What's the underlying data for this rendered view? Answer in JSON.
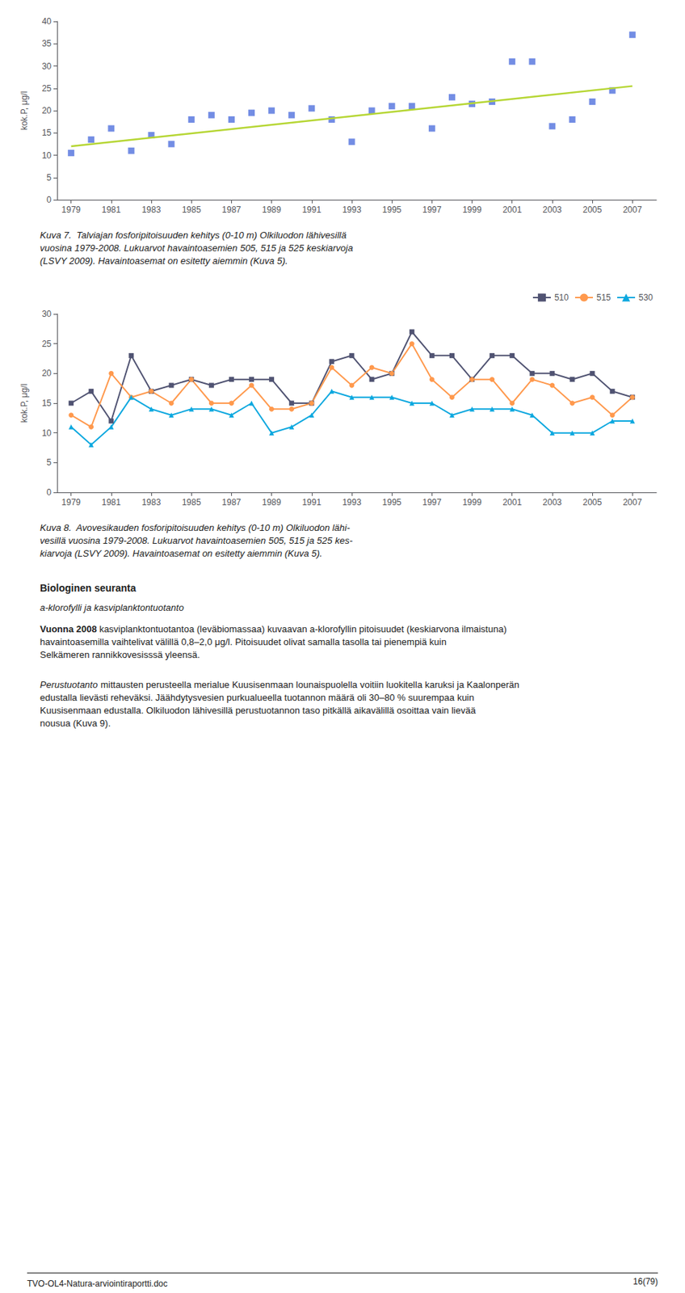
{
  "chart_data": [
    {
      "type": "scatter",
      "ylabel": "kok.P, μg/l",
      "series": [
        {
          "type": "scatter",
          "marker": "square",
          "x": [
            1979,
            1980,
            1981,
            1982,
            1983,
            1984,
            1985,
            1986,
            1987,
            1988,
            1989,
            1990,
            1991,
            1992,
            1993,
            1994,
            1995,
            1996,
            1997,
            1998,
            1999,
            2000,
            2001,
            2002,
            2003,
            2004,
            2005,
            2006,
            2007
          ],
          "values": [
            10.5,
            13.5,
            16.0,
            11.0,
            14.5,
            12.5,
            18.0,
            19.0,
            18.0,
            19.5,
            20.0,
            19.0,
            20.5,
            18.0,
            13.0,
            20.0,
            21.0,
            21.0,
            16.0,
            23.0,
            21.5,
            22.0,
            31.0,
            31.0,
            16.5,
            18.0,
            22.0,
            24.5,
            37.0
          ]
        },
        {
          "type": "line",
          "x": [
            1979,
            2007
          ],
          "values": [
            12.0,
            25.5
          ]
        }
      ],
      "xlim": [
        1978.3,
        2008.2
      ],
      "xticks": [
        1979,
        1981,
        1983,
        1985,
        1987,
        1989,
        1991,
        1993,
        1995,
        1997,
        1999,
        2001,
        2003,
        2005,
        2007
      ],
      "ylim": [
        0,
        40
      ],
      "yticks": [
        0,
        5,
        10,
        15,
        20,
        25,
        30,
        35,
        40
      ],
      "grid": false,
      "annotations": [
        "Kuva 7.  Talviajan fosforipitoisuuden kehitys (0-10 m) Olkiluodon lähivesillä\nvuosina 1979-2008. Lukuarvot havaintoasemien 505, 515 ja 525 keskiarvoja\n(LSVY 2009). Havaintoasemat on esitetty aiemmin (Kuva 5)."
      ]
    },
    {
      "type": "line",
      "ylabel": "kok.P, μg/l",
      "x": [
        1979,
        1980,
        1981,
        1982,
        1983,
        1984,
        1985,
        1986,
        1987,
        1988,
        1989,
        1990,
        1991,
        1992,
        1993,
        1994,
        1995,
        1996,
        1997,
        1998,
        1999,
        2000,
        2001,
        2002,
        2003,
        2004,
        2005,
        2006,
        2007
      ],
      "series": [
        {
          "name": "510",
          "marker": "square",
          "values": [
            15,
            17,
            12,
            23,
            17,
            18,
            19,
            18,
            19,
            19,
            19,
            15,
            15,
            22,
            23,
            19,
            20,
            27,
            23,
            23,
            19,
            23,
            23,
            20,
            20,
            19,
            20,
            17,
            16
          ]
        },
        {
          "name": "515",
          "marker": "circle",
          "values": [
            13,
            11,
            20,
            16,
            17,
            15,
            19,
            15,
            15,
            18,
            14,
            14,
            15,
            21,
            18,
            21,
            20,
            25,
            19,
            16,
            19,
            19,
            15,
            19,
            18,
            15,
            16,
            13,
            16
          ]
        },
        {
          "name": "530",
          "marker": "triangle",
          "values": [
            11,
            8,
            11,
            16,
            14,
            13,
            14,
            14,
            13,
            15,
            10,
            11,
            13,
            17,
            16,
            16,
            16,
            15,
            15,
            13,
            14,
            14,
            14,
            13,
            10,
            10,
            10,
            12,
            12
          ]
        }
      ],
      "xlim": [
        1978.3,
        2008.2
      ],
      "xticks": [
        1979,
        1981,
        1983,
        1985,
        1987,
        1989,
        1991,
        1993,
        1995,
        1997,
        1999,
        2001,
        2003,
        2005,
        2007
      ],
      "ylim": [
        0,
        30
      ],
      "yticks": [
        0,
        5,
        10,
        15,
        20,
        25,
        30
      ],
      "grid": false,
      "legend": "upper right",
      "annotations": [
        "Kuva 8.  Avovesikauden fosforipitoisuuden kehitys (0-10 m) Olkiluodon lähi-",
        "vesillä vuosina 1979-2008. Lukuarvot havaintoasemien 505, 515 ja 525 kes-",
        "kiarvoja (LSVY 2009). Havaintoasemat on esitetty aiemmin (Kuva 5).",
        "Biologinen seuranta",
        "a-klorofylli ja kasviplanktontuotanto",
        "Vuonna 2008",
        " kasviplanktontuotantoa (leväbiomassaa) kuvaavan a-klorofyllin pitoisuudet (keskiarvona ilmaistuna) havaintoasemilla vaihtelivat välillä 0,8–2,0 μg/l. Pitoisuudet olivat samalla tasolla tai pienempiä kuin Selkämeren rannikkovesisssä yleensä.",
        "Perustuotanto",
        "mittausten perusteella merialue Kuusisenmaan lounaispuolella voitiin luokitella karuksi ja Kaalonperän edustalla lievästi reheväksi. Jäähdytys­vesien purkualueella tuotannon määrä oli 30–80 % suurempaa kuin Kuusisenmaan edustalla. Olkiluodon lähivesillä perustuotannon taso pitkällä aikavälillä osoittaa vain lievää nousua (Kuva 9).",
        "TVO-OL4-Natura-arviointiraportti.doc",
        "16(79)"
      ]
    }
  ]
}
